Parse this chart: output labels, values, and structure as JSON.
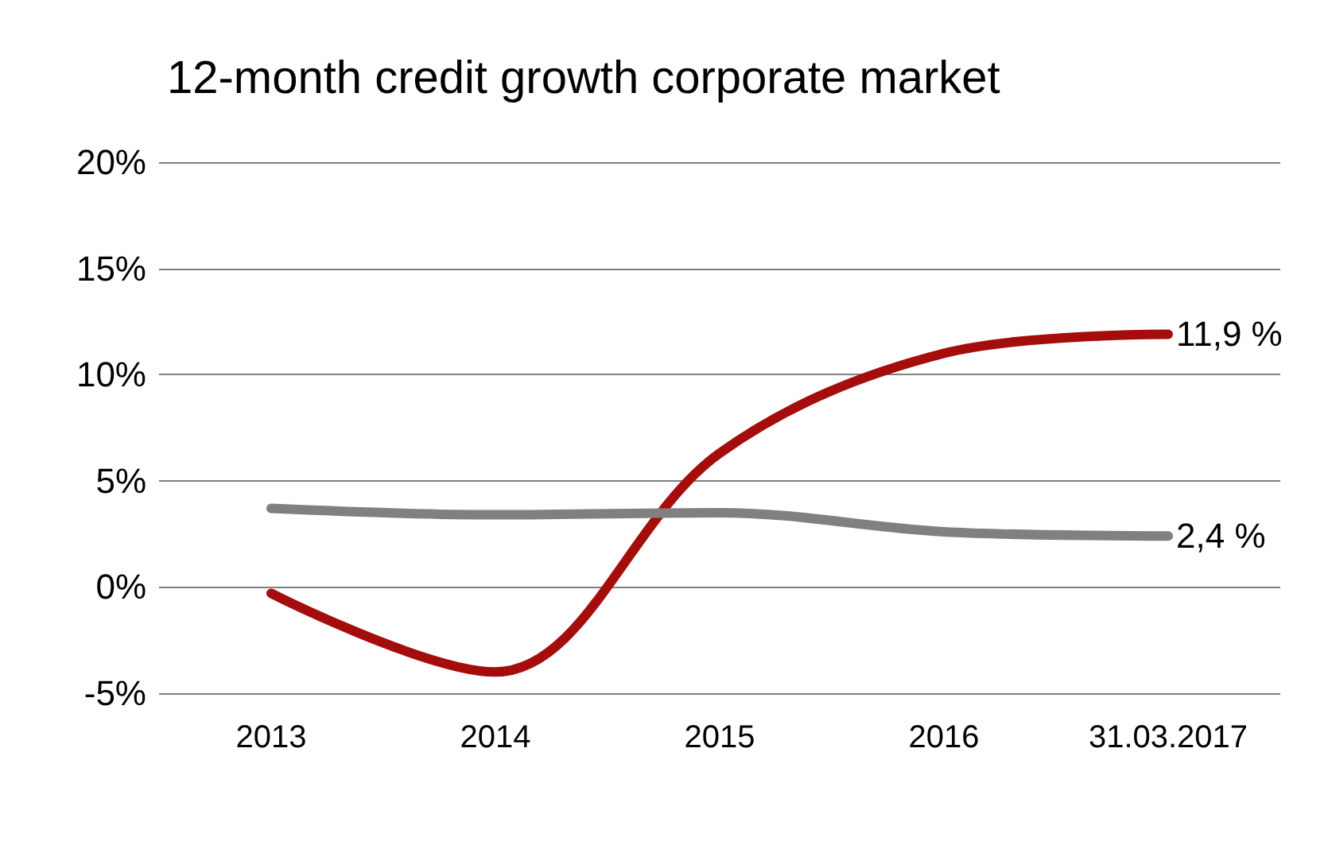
{
  "chart_data": {
    "type": "line",
    "title": "12-month credit growth corporate market",
    "categories": [
      "2013",
      "2014",
      "2015",
      "2016",
      "31.03.2017"
    ],
    "series": [
      {
        "color": "#a50d0d",
        "values": [
          -0.3,
          -4.0,
          6.3,
          11.0,
          11.9
        ],
        "value_labels": [
          null,
          null,
          null,
          null,
          "11,9 %"
        ]
      },
      {
        "color": "#808080",
        "values": [
          3.7,
          3.4,
          3.5,
          2.6,
          2.4
        ],
        "value_labels": [
          null,
          null,
          null,
          null,
          "2,4 %"
        ]
      }
    ],
    "ylim": [
      -5,
      20
    ],
    "yticks": [
      {
        "value": -5,
        "label": "-5%"
      },
      {
        "value": 0,
        "label": "0%"
      },
      {
        "value": 5,
        "label": "5%"
      },
      {
        "value": 10,
        "label": "10%"
      },
      {
        "value": 15,
        "label": "15%"
      },
      {
        "value": 20,
        "label": "20%"
      }
    ],
    "grid": "y",
    "marker": "none",
    "line_style": "solid"
  }
}
